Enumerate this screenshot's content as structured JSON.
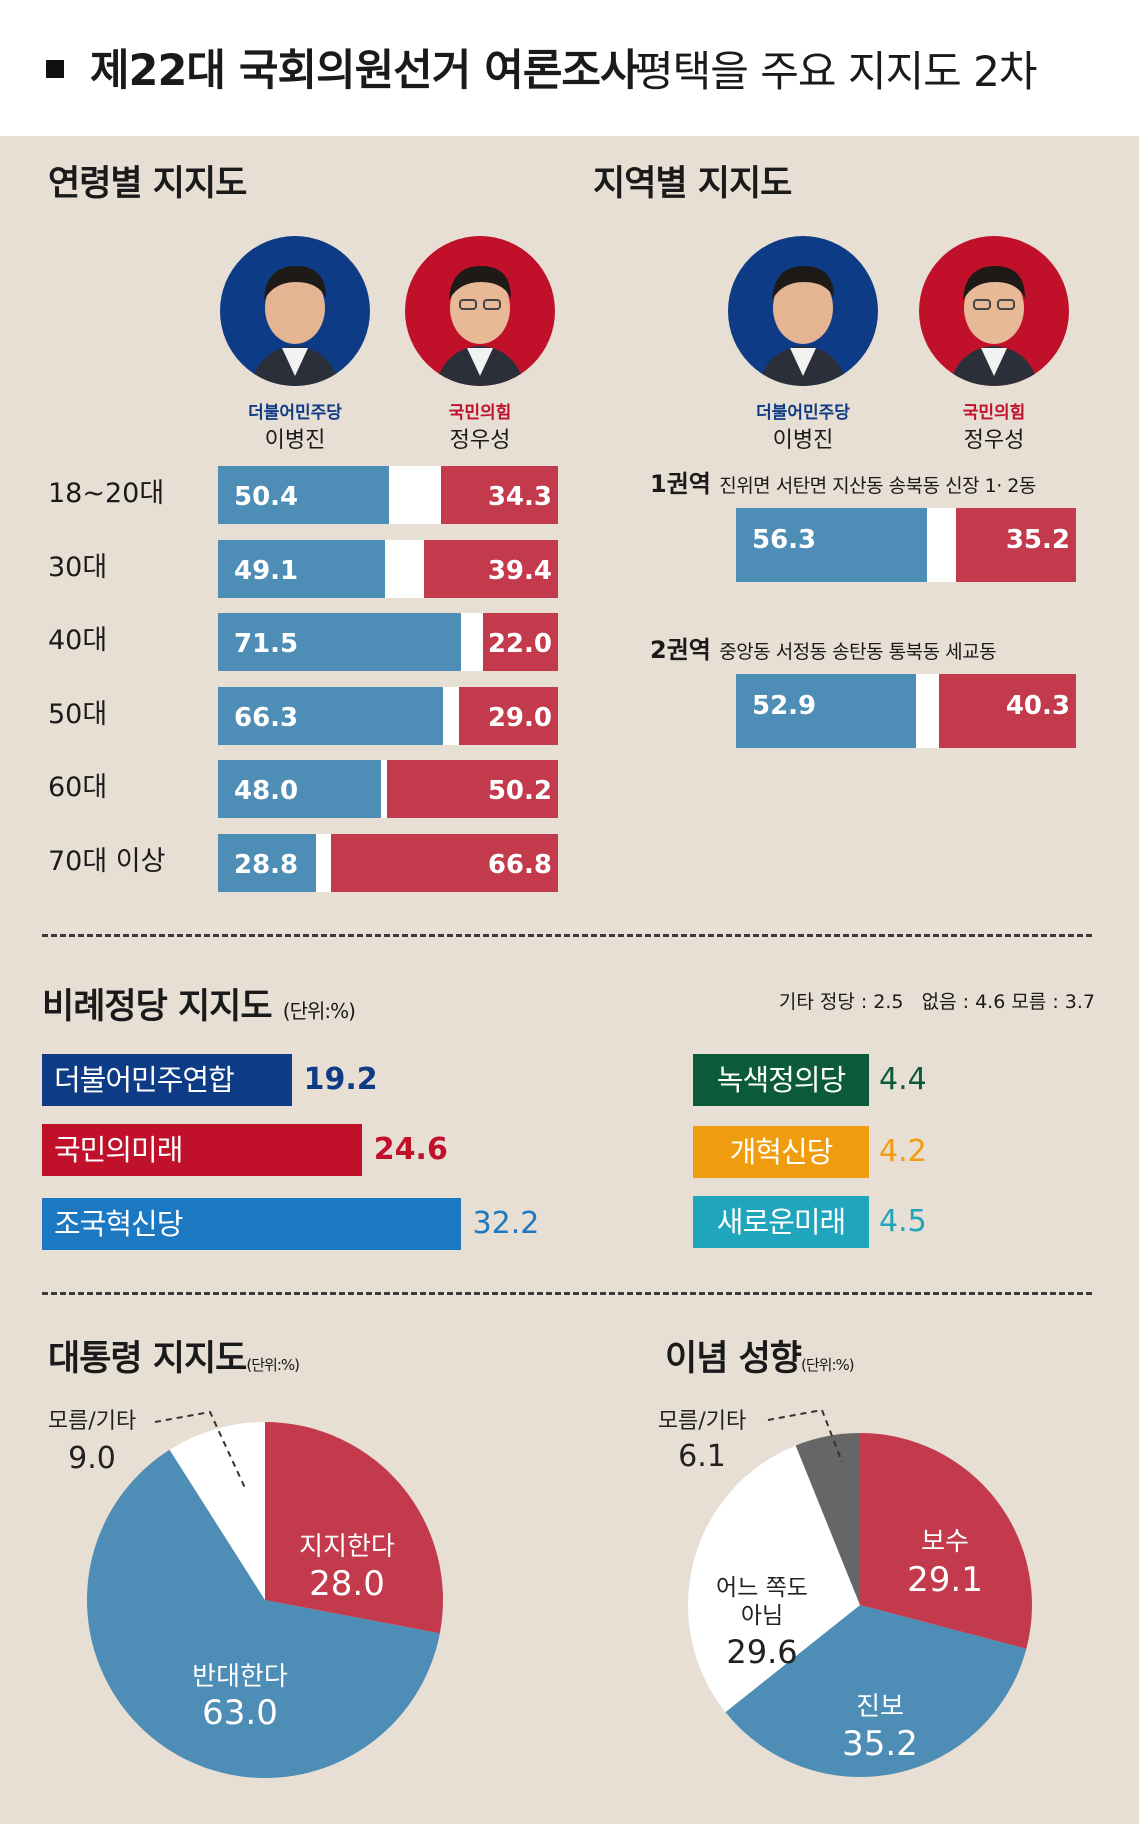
{
  "title": {
    "bold": "제22대 국회의원선거 여론조사",
    "rest": "평택을 주요 지지도 2차"
  },
  "colors": {
    "blue": "#4e8db6",
    "red": "#c33a4d",
    "navy": "#0e3b85",
    "crimson": "#c0102a",
    "brightblue": "#1d78c2",
    "green": "#0b5b3a",
    "orange": "#ef9c0f",
    "teal": "#1fa6bd",
    "gray": "#666666"
  },
  "candidates": {
    "a": {
      "party": "더불어민주당",
      "name": "이병진"
    },
    "b": {
      "party": "국민의힘",
      "name": "정우성"
    }
  },
  "age_section": {
    "title": "연령별 지지도"
  },
  "region_section": {
    "title": "지역별 지지도"
  },
  "proportional": {
    "title": "비례정당 지지도",
    "unit": "(단위:%)",
    "others": "기타 정당 : 2.5   없음 : 4.6 모름 : 3.7"
  },
  "president": {
    "title": "대통령 지지도",
    "unit": "(단위:%)"
  },
  "ideology": {
    "title": "이념 성향",
    "unit": "(단위:%)"
  },
  "chart_data": [
    {
      "type": "bar",
      "title": "연령별 지지도",
      "orientation": "horizontal-stacked",
      "categories": [
        "18~20대",
        "30대",
        "40대",
        "50대",
        "60대",
        "70대 이상"
      ],
      "series": [
        {
          "name": "이병진",
          "values": [
            50.4,
            49.1,
            71.5,
            66.3,
            48.0,
            28.8
          ],
          "labels": [
            "50.4",
            "49.1",
            "71.5",
            "66.3",
            "48.0",
            "28.8"
          ]
        },
        {
          "name": "정우성",
          "values": [
            34.3,
            39.4,
            22.0,
            29.0,
            50.2,
            66.8
          ],
          "labels": [
            "34.3",
            "39.4",
            "22.0",
            "29.0",
            "50.2",
            "66.8"
          ]
        }
      ]
    },
    {
      "type": "bar",
      "title": "지역별 지지도",
      "orientation": "horizontal-stacked",
      "categories": [
        "1권역",
        "2권역"
      ],
      "descriptions": [
        "진위면 서탄면 지산동 송북동 신장 1· 2동",
        "중앙동 서정동 송탄동 통북동 세교동"
      ],
      "series": [
        {
          "name": "이병진",
          "values": [
            56.3,
            52.9
          ],
          "labels": [
            "56.3",
            "52.9"
          ]
        },
        {
          "name": "정우성",
          "values": [
            35.2,
            40.3
          ],
          "labels": [
            "35.2",
            "40.3"
          ]
        }
      ]
    },
    {
      "type": "bar",
      "title": "비례정당 지지도",
      "orientation": "horizontal",
      "categories": [
        "더불어민주연합",
        "국민의미래",
        "조국혁신당",
        "녹색정의당",
        "개혁신당",
        "새로운미래"
      ],
      "values": [
        19.2,
        24.6,
        32.2,
        4.4,
        4.2,
        4.5
      ],
      "labels": [
        "19.2",
        "24.6",
        "32.2",
        "4.4",
        "4.2",
        "4.5"
      ]
    },
    {
      "type": "pie",
      "title": "대통령 지지도",
      "slices": [
        {
          "label": "지지한다",
          "value": 28.0,
          "text": "28.0"
        },
        {
          "label": "반대한다",
          "value": 63.0,
          "text": "63.0"
        },
        {
          "label": "모름/기타",
          "value": 9.0,
          "text": "9.0"
        }
      ]
    },
    {
      "type": "pie",
      "title": "이념 성향",
      "slices": [
        {
          "label": "보수",
          "value": 29.1,
          "text": "29.1"
        },
        {
          "label": "진보",
          "value": 35.2,
          "text": "35.2"
        },
        {
          "label": "어느 쪽도 아님",
          "value": 29.6,
          "text": "29.6"
        },
        {
          "label": "모름/기타",
          "value": 6.1,
          "text": "6.1"
        }
      ]
    }
  ]
}
